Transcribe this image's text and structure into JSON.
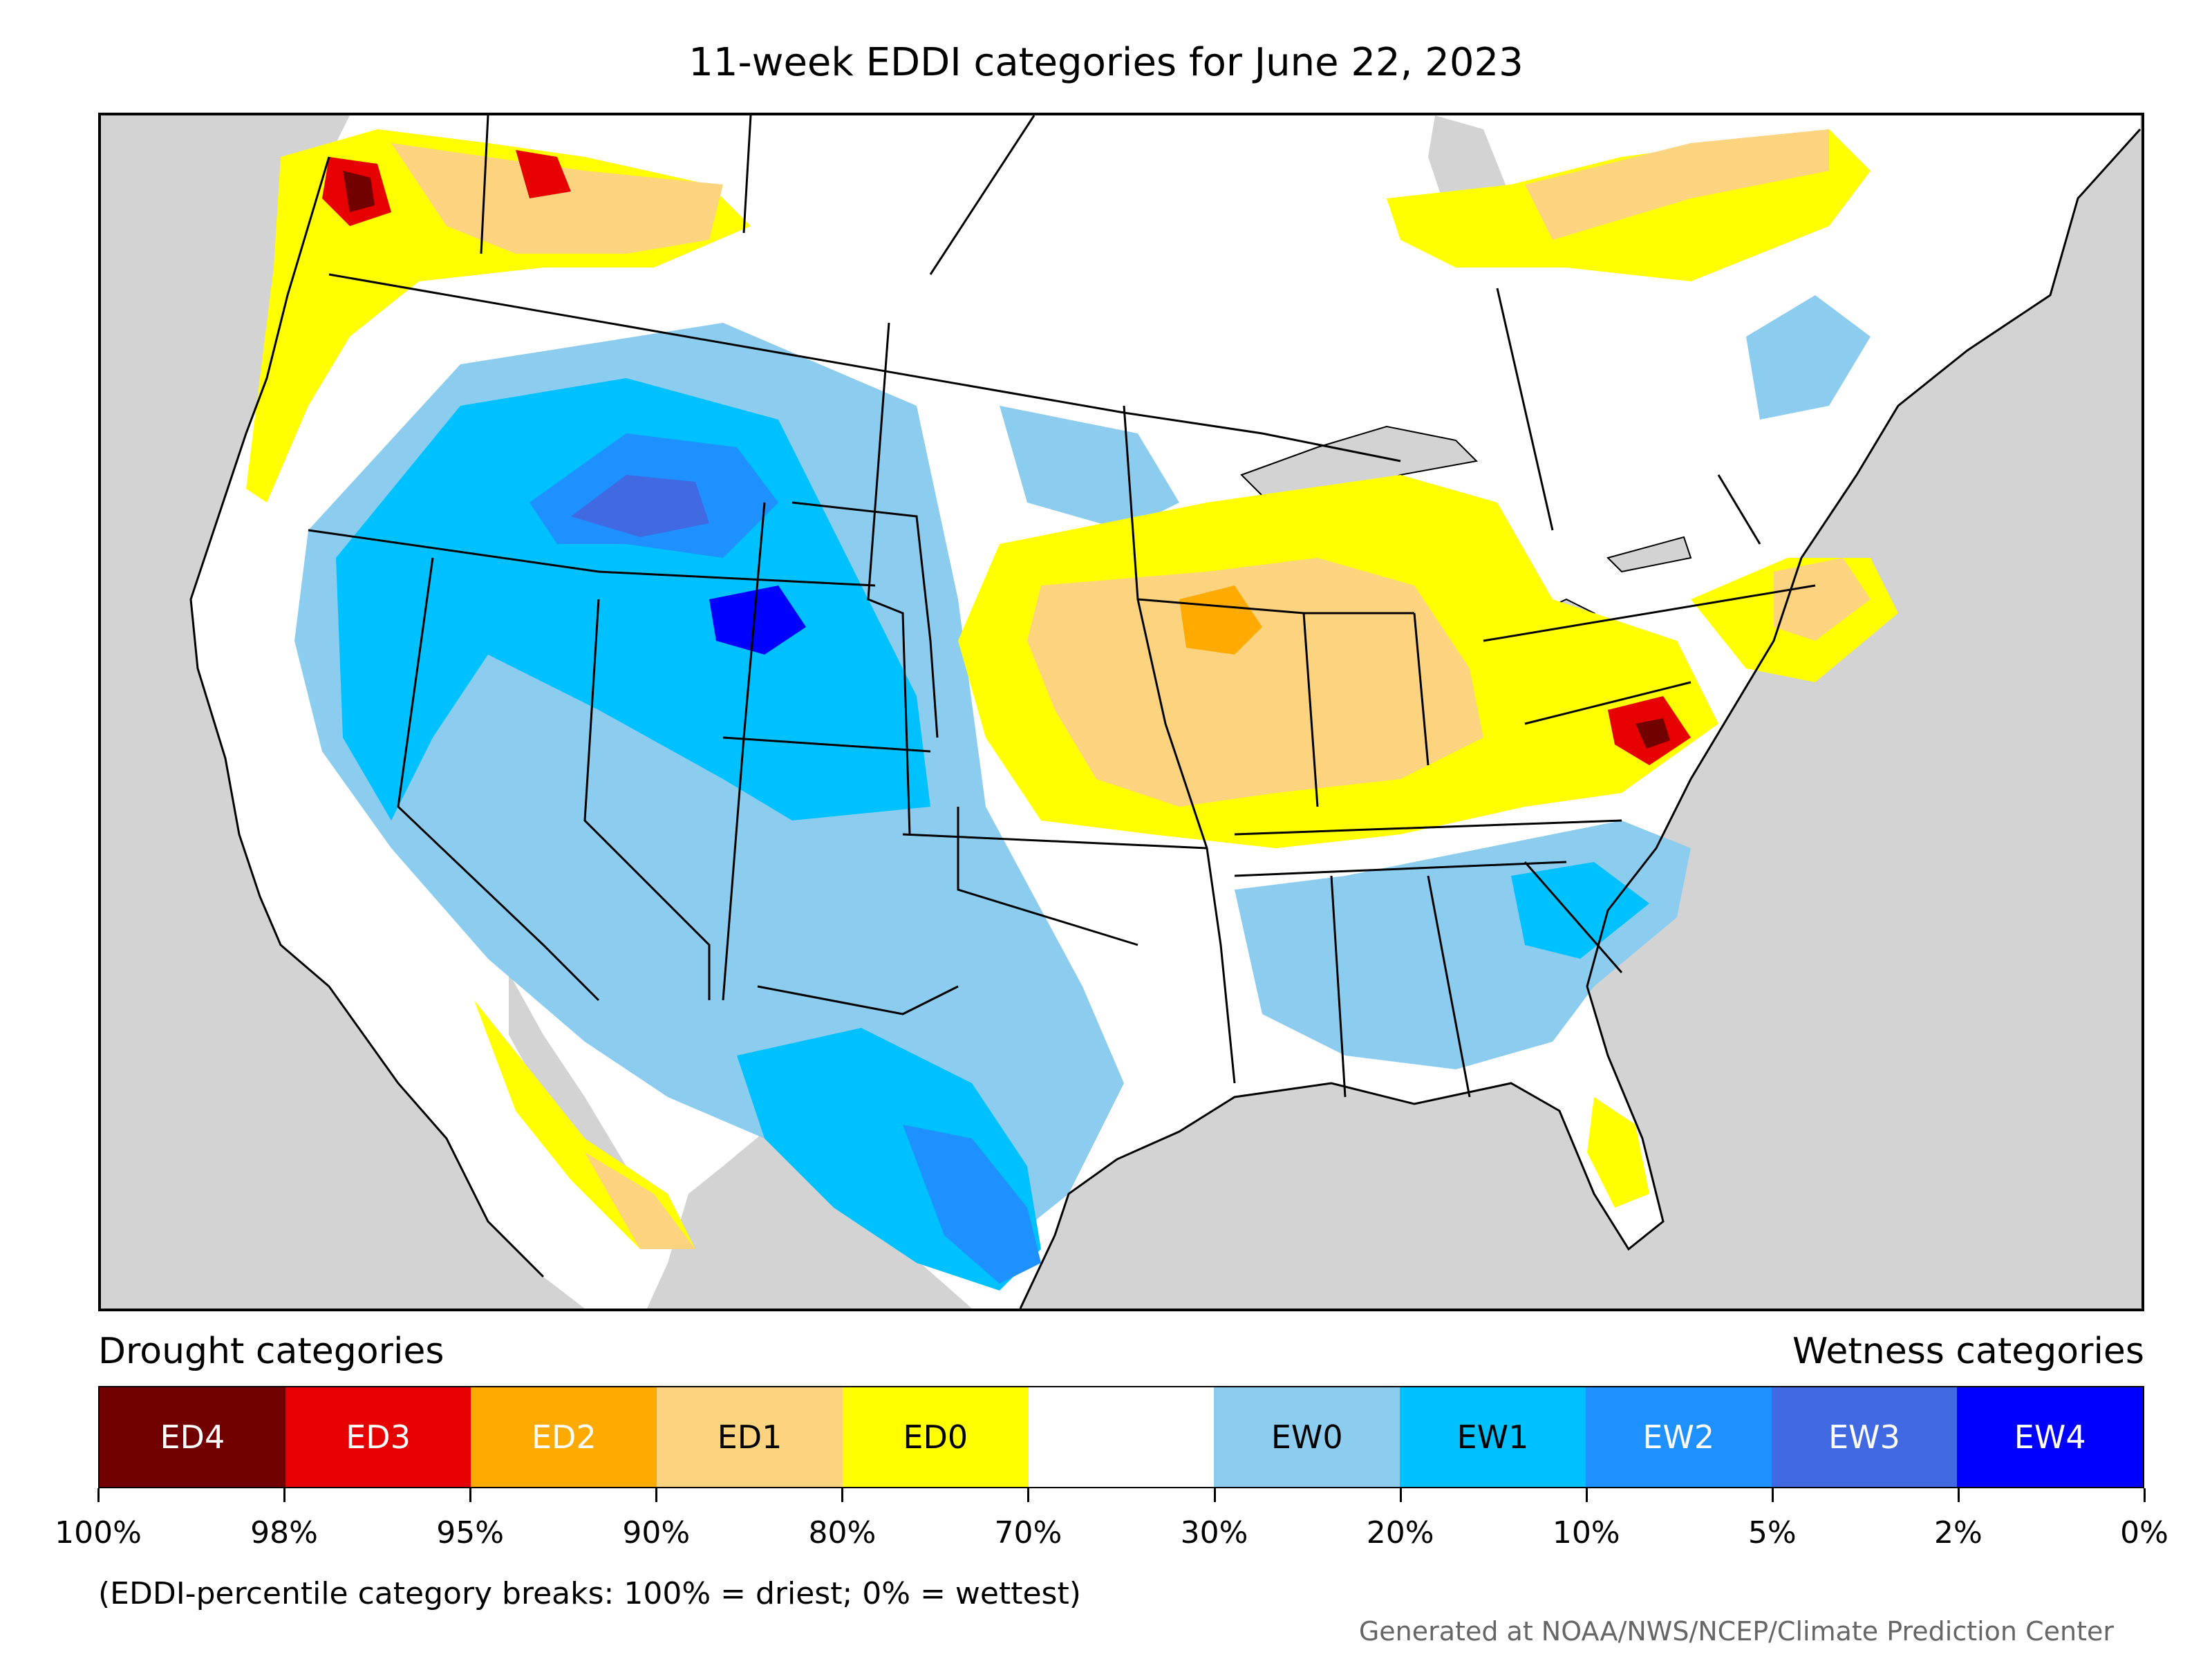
{
  "title": "11-week EDDI categories for June 22, 2023",
  "legend": {
    "drought_heading": "Drought categories",
    "wetness_heading": "Wetness categories",
    "categories": [
      {
        "label": "ED4",
        "color": "#730000",
        "text_color": "#ffffff"
      },
      {
        "label": "ED3",
        "color": "#e60000",
        "text_color": "#ffffff"
      },
      {
        "label": "ED2",
        "color": "#ffaa00",
        "text_color": "#ffffff"
      },
      {
        "label": "ED1",
        "color": "#fcd37f",
        "text_color": "#000000"
      },
      {
        "label": "ED0",
        "color": "#ffff00",
        "text_color": "#000000"
      },
      {
        "label": "",
        "color": "#ffffff",
        "text_color": "#000000"
      },
      {
        "label": "EW0",
        "color": "#8ccdef",
        "text_color": "#000000"
      },
      {
        "label": "EW1",
        "color": "#00c1ff",
        "text_color": "#000000"
      },
      {
        "label": "EW2",
        "color": "#1e90ff",
        "text_color": "#ffffff"
      },
      {
        "label": "EW3",
        "color": "#4169e1",
        "text_color": "#ffffff"
      },
      {
        "label": "EW4",
        "color": "#0000ff",
        "text_color": "#ffffff"
      }
    ],
    "tick_labels": [
      "100%",
      "98%",
      "95%",
      "90%",
      "80%",
      "70%",
      "30%",
      "20%",
      "10%",
      "5%",
      "2%",
      "0%"
    ],
    "note": "(EDDI-percentile category breaks: 100% = driest; 0% = wettest)"
  },
  "credit": "Generated at NOAA/NWS/NCEP/Climate Prediction Center",
  "map_colors": {
    "ocean": "#d3d3d3",
    "land": "#ffffff",
    "lakes": "#d3d3d3",
    "borders": "#000000"
  }
}
